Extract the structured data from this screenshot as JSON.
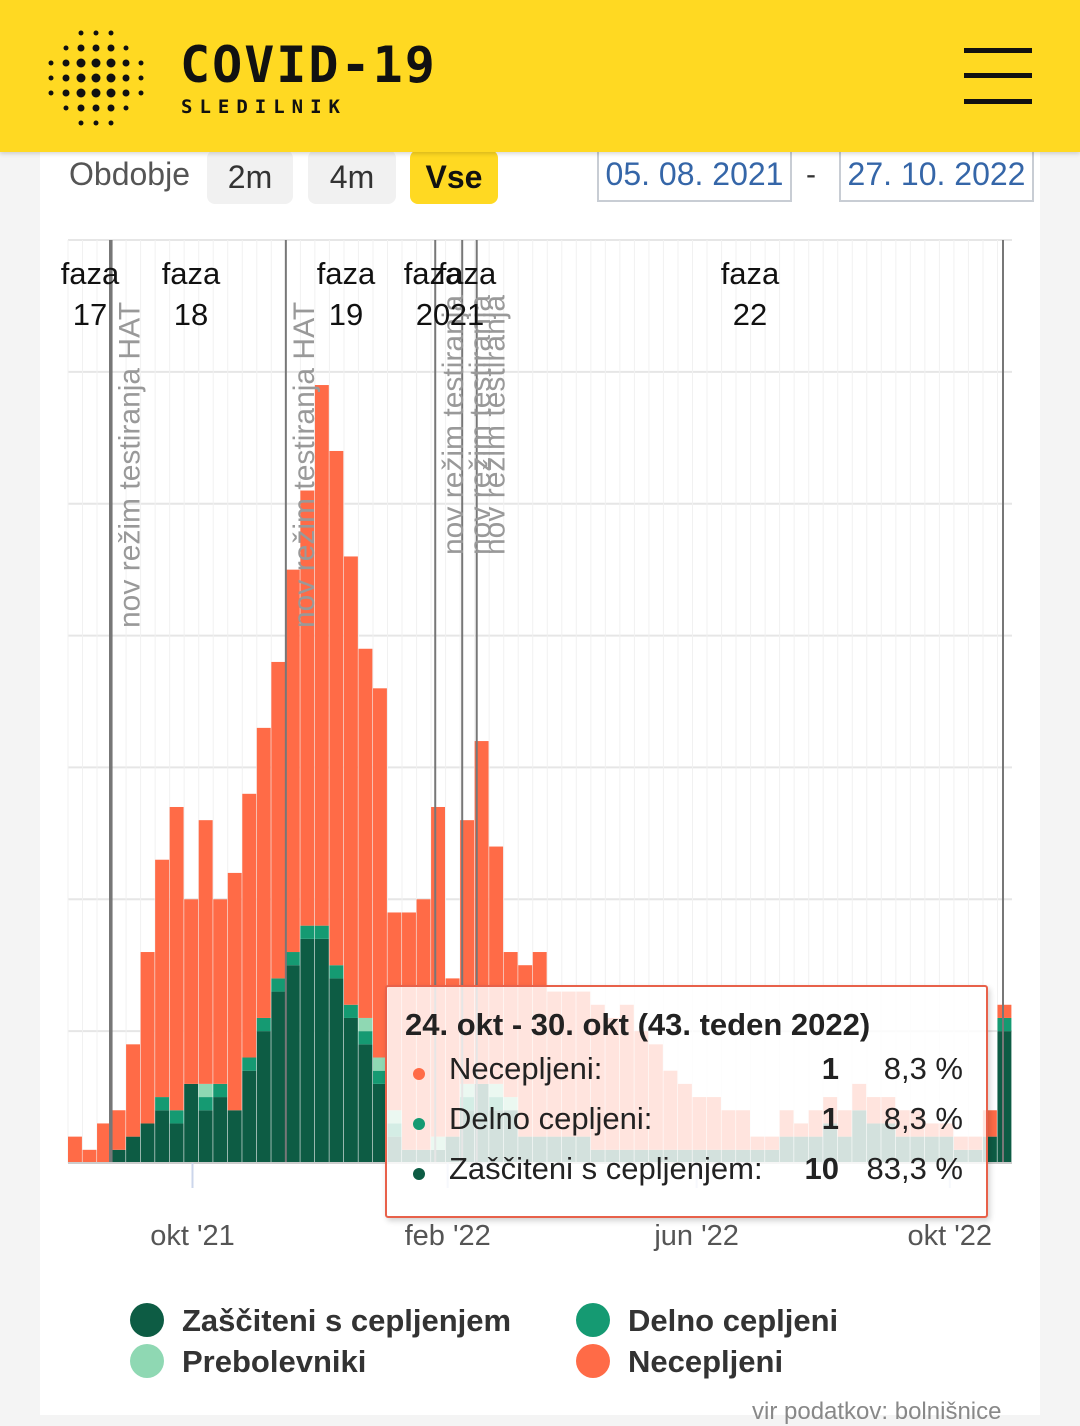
{
  "header": {
    "title": "COVID-19",
    "subtitle": "SLEDILNIK",
    "menu_icon": "hamburger-icon",
    "background": "#ffd922"
  },
  "toolbar": {
    "period_label": "Obdobje",
    "buttons": [
      {
        "label": "2m",
        "active": false
      },
      {
        "label": "4m",
        "active": false
      },
      {
        "label": "Vse",
        "active": true
      }
    ],
    "date_from": "05. 08. 2021",
    "date_separator": "-",
    "date_to": "27. 10. 2022"
  },
  "chart_data": {
    "type": "bar",
    "stacked": true,
    "interval": "weekly",
    "x_start": "2021-08-02",
    "categories": [
      "2021-08-02",
      "2021-08-09",
      "2021-08-16",
      "2021-08-23",
      "2021-08-30",
      "2021-09-06",
      "2021-09-13",
      "2021-09-20",
      "2021-09-27",
      "2021-10-04",
      "2021-10-11",
      "2021-10-18",
      "2021-10-25",
      "2021-11-01",
      "2021-11-08",
      "2021-11-15",
      "2021-11-22",
      "2021-11-29",
      "2021-12-06",
      "2021-12-13",
      "2021-12-20",
      "2021-12-27",
      "2022-01-03",
      "2022-01-10",
      "2022-01-17",
      "2022-01-24",
      "2022-01-31",
      "2022-02-07",
      "2022-02-14",
      "2022-02-21",
      "2022-02-28",
      "2022-03-07",
      "2022-03-14",
      "2022-03-21",
      "2022-03-28",
      "2022-04-04",
      "2022-04-11",
      "2022-04-18",
      "2022-04-25",
      "2022-05-02",
      "2022-05-09",
      "2022-05-16",
      "2022-05-23",
      "2022-05-30",
      "2022-06-06",
      "2022-06-13",
      "2022-06-20",
      "2022-06-27",
      "2022-07-04",
      "2022-07-11",
      "2022-07-18",
      "2022-07-25",
      "2022-08-01",
      "2022-08-08",
      "2022-08-15",
      "2022-08-22",
      "2022-08-29",
      "2022-09-05",
      "2022-09-12",
      "2022-09-19",
      "2022-09-26",
      "2022-10-03",
      "2022-10-10",
      "2022-10-17",
      "2022-10-24"
    ],
    "series": [
      {
        "name": "Zaščiteni s cepljenjem",
        "color": "#0d5c44",
        "values": [
          0,
          0,
          0,
          1,
          2,
          3,
          4,
          3,
          6,
          4,
          5,
          4,
          7,
          10,
          13,
          15,
          17,
          17,
          14,
          11,
          9,
          6,
          2,
          1,
          1,
          1,
          2,
          4,
          6,
          4,
          4,
          2,
          2,
          2,
          2,
          2,
          1,
          1,
          1,
          1,
          1,
          1,
          1,
          1,
          1,
          1,
          1,
          1,
          1,
          2,
          2,
          2,
          3,
          2,
          4,
          3,
          3,
          2,
          2,
          2,
          2,
          1,
          1,
          2,
          10
        ]
      },
      {
        "name": "Delno cepljeni",
        "color": "#159a72",
        "values": [
          0,
          0,
          0,
          0,
          0,
          0,
          1,
          1,
          0,
          1,
          1,
          0,
          1,
          1,
          1,
          1,
          1,
          1,
          1,
          1,
          1,
          1,
          1,
          0,
          0,
          0,
          0,
          1,
          0,
          1,
          0,
          0,
          0,
          0,
          0,
          0,
          0,
          0,
          0,
          0,
          0,
          0,
          0,
          0,
          0,
          0,
          0,
          0,
          0,
          0,
          0,
          0,
          0,
          0,
          0,
          0,
          0,
          0,
          0,
          0,
          0,
          0,
          0,
          0,
          1
        ]
      },
      {
        "name": "Prebolevniki",
        "color": "#8fd8b3",
        "values": [
          0,
          0,
          0,
          0,
          0,
          0,
          0,
          0,
          0,
          1,
          0,
          0,
          0,
          0,
          0,
          0,
          0,
          0,
          0,
          0,
          1,
          1,
          1,
          0,
          0,
          1,
          0,
          1,
          0,
          1,
          1,
          0,
          0,
          0,
          0,
          0,
          0,
          0,
          0,
          0,
          0,
          0,
          0,
          0,
          0,
          0,
          0,
          0,
          0,
          0,
          0,
          0,
          0,
          0,
          0,
          0,
          0,
          0,
          0,
          0,
          0,
          0,
          0,
          0,
          0
        ]
      },
      {
        "name": "Necepljeni",
        "color": "#ff6b47",
        "values": [
          2,
          1,
          3,
          3,
          7,
          13,
          18,
          23,
          14,
          20,
          14,
          18,
          20,
          22,
          24,
          29,
          33,
          41,
          39,
          34,
          28,
          28,
          15,
          18,
          19,
          25,
          12,
          20,
          26,
          18,
          11,
          13,
          14,
          11,
          11,
          11,
          11,
          10,
          11,
          9,
          8,
          6,
          5,
          4,
          4,
          3,
          3,
          1,
          1,
          2,
          1,
          2,
          2,
          2,
          2,
          2,
          2,
          2,
          2,
          1,
          1,
          1,
          1,
          2,
          1
        ]
      }
    ],
    "x_ticks": [
      "okt '21",
      "feb '22",
      "jun '22",
      "okt '22"
    ],
    "ylim": [
      0,
      70
    ],
    "grid": true,
    "phases": [
      {
        "label": "faza 17",
        "date": "2021-07-01"
      },
      {
        "label": "faza 18",
        "date": "2021-08-23"
      },
      {
        "label": "faza 19",
        "date": "2021-11-15"
      },
      {
        "label": "faza 20",
        "date": "2022-01-26"
      },
      {
        "label": "faza 21",
        "date": "2022-02-08"
      },
      {
        "label": "faza 22",
        "date": "2022-07-01"
      }
    ],
    "annotations": [
      {
        "label": "nov režim testiranja HAT",
        "date": "2021-08-23"
      },
      {
        "label": "nov režim testiranja HAT",
        "date": "2021-11-15"
      },
      {
        "label": "nov režim testiranja",
        "date": "2022-01-26"
      },
      {
        "label": "nov režim testiranja",
        "date": "2022-02-08"
      },
      {
        "label": "nov režim testiranja",
        "date": "2022-02-15"
      }
    ],
    "legend_position": "bottom"
  },
  "tooltip": {
    "title": "24. okt - 30. okt (43. teden 2022)",
    "rows": [
      {
        "name": "Necepljeni:",
        "count": "1",
        "percent": "8,3 %",
        "color": "#ff6b47"
      },
      {
        "name": "Delno cepljeni:",
        "count": "1",
        "percent": "8,3 %",
        "color": "#159a72"
      },
      {
        "name": "Zaščiteni s cepljenjem:",
        "count": "10",
        "percent": "83,3 %",
        "color": "#0d5c44"
      }
    ]
  },
  "legend": [
    {
      "name": "Zaščiteni s cepljenjem",
      "color": "#0d5c44"
    },
    {
      "name": "Delno cepljeni",
      "color": "#159a72"
    },
    {
      "name": "Prebolevniki",
      "color": "#8fd8b3"
    },
    {
      "name": "Necepljeni",
      "color": "#ff6b47"
    }
  ],
  "source": "vir podatkov: bolnišnice"
}
